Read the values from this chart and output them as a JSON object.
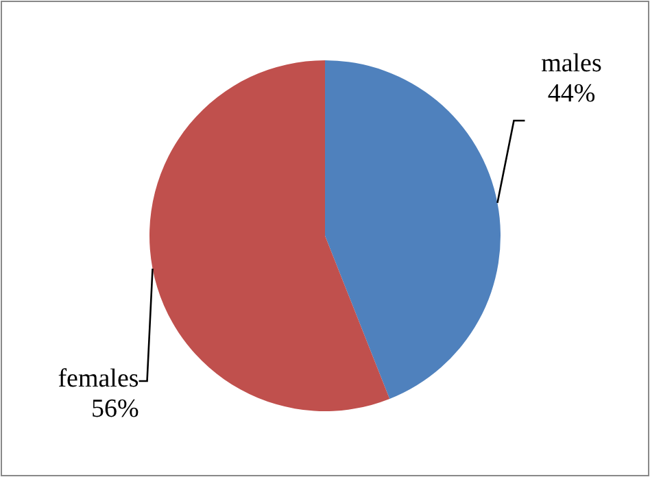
{
  "chart_data": {
    "type": "pie",
    "categories": [
      "males",
      "females"
    ],
    "values": [
      44,
      56
    ],
    "colors": [
      "#4f81bd",
      "#c0504d"
    ],
    "value_labels": [
      "44%",
      "56%"
    ]
  }
}
